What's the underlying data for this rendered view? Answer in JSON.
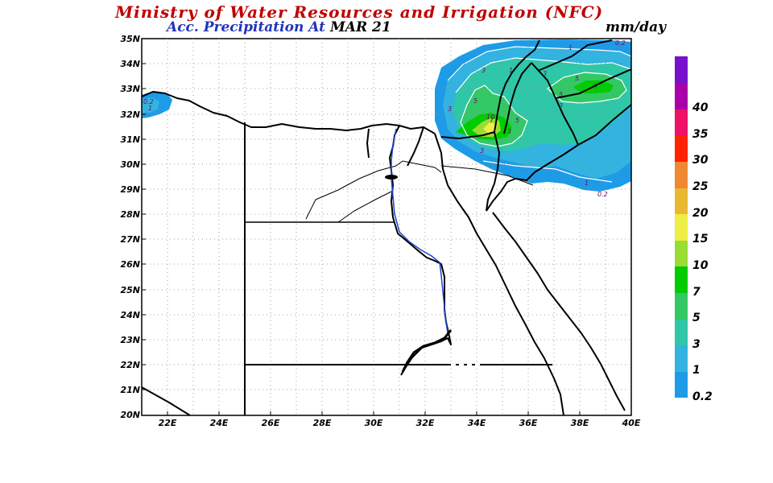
{
  "header": {
    "title": "Ministry of Water Resources and Irrigation (NFC)",
    "subtitle": "Acc. Precipitation  At",
    "date": "MAR 21",
    "units": "mm/day"
  },
  "axes": {
    "lat_labels": [
      "35N",
      "34N",
      "33N",
      "32N",
      "31N",
      "30N",
      "29N",
      "28N",
      "27N",
      "26N",
      "25N",
      "24N",
      "23N",
      "22N",
      "21N",
      "20N"
    ],
    "lon_labels": [
      "22E",
      "24E",
      "26E",
      "28E",
      "30E",
      "32E",
      "34E",
      "36E",
      "38E",
      "40E"
    ]
  },
  "colorbar": {
    "levels": [
      "0.2",
      "1",
      "3",
      "5",
      "7",
      "10",
      "15",
      "20",
      "25",
      "30",
      "35",
      "40"
    ],
    "colors": [
      "#1e9be6",
      "#33b3e0",
      "#2fc7a8",
      "#33c866",
      "#00cc00",
      "#99dd33",
      "#eeee44",
      "#e8b830",
      "#ee8833",
      "#ff2200",
      "#ee1166",
      "#aa00aa",
      "#7711cc"
    ]
  },
  "contour_labels": {
    "west_a": "0.2",
    "west_b": "1",
    "c1": "1",
    "c2": "3",
    "c3": "1",
    "c4": "3",
    "c5": "5",
    "c6": "7",
    "c7": "5",
    "c8": "3",
    "c9": "5",
    "c10": "7",
    "c11": "10",
    "c12": "3",
    "c13": "5",
    "c14": "3",
    "c15": "1",
    "c16": "0.2",
    "c17": "3",
    "c18": "0.2"
  }
}
